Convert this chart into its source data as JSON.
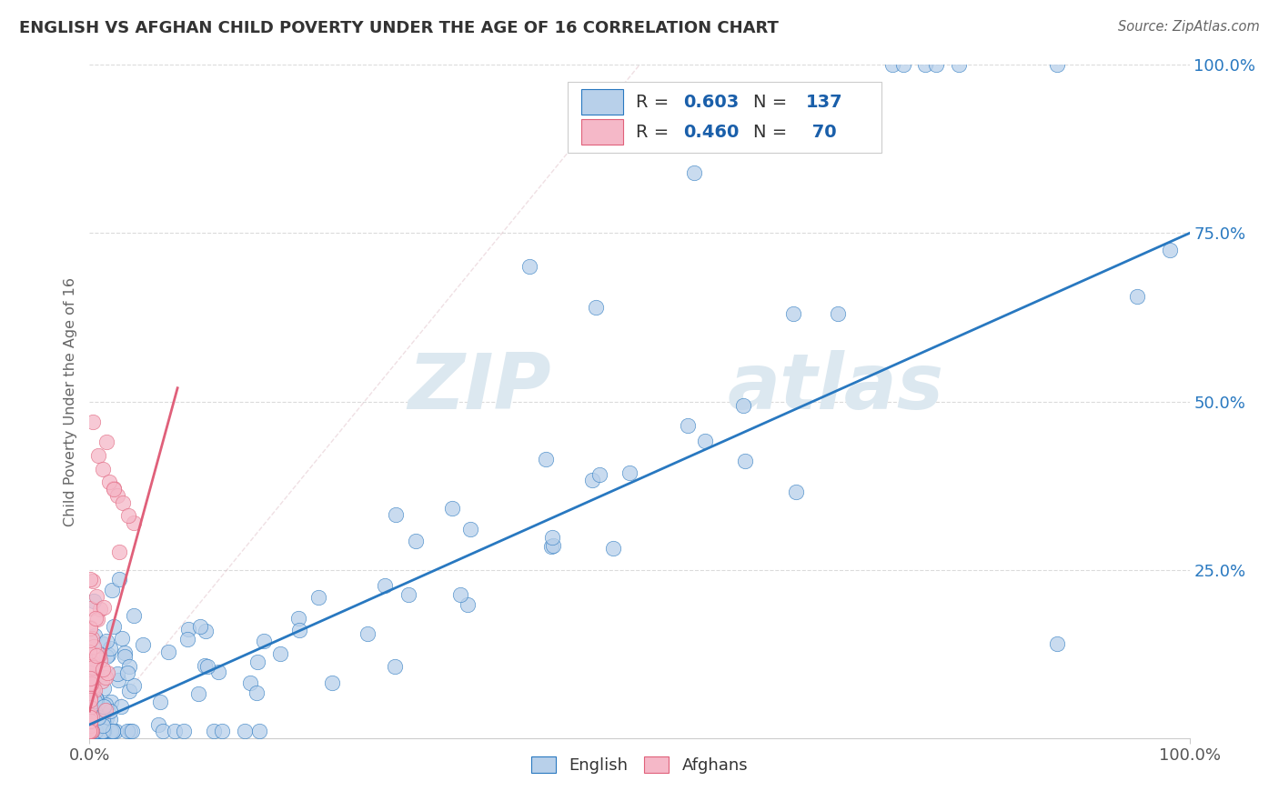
{
  "title": "ENGLISH VS AFGHAN CHILD POVERTY UNDER THE AGE OF 16 CORRELATION CHART",
  "source": "Source: ZipAtlas.com",
  "ylabel": "Child Poverty Under the Age of 16",
  "legend_english": "English",
  "legend_afghans": "Afghans",
  "english_color": "#b8d0ea",
  "english_line_color": "#2878c0",
  "afghan_color": "#f5b8c8",
  "afghan_line_color": "#e0607a",
  "dashed_ref_color": "#d0d0d0",
  "dashed_afghan_color": "#e8909a",
  "background_color": "#ffffff",
  "watermark_color": "#dce8f0",
  "title_color": "#333333",
  "label_color": "#666666",
  "tick_color": "#555555",
  "legend_text_color": "#1a5faa",
  "legend_N_color": "#e05878",
  "ytick_color": "#2878c0",
  "grid_color": "#d8d8d8",
  "xlim": [
    0.0,
    1.0
  ],
  "ylim": [
    0.0,
    1.0
  ],
  "yticks": [
    0.25,
    0.5,
    0.75,
    1.0
  ],
  "ytick_labels": [
    "25.0%",
    "50.0%",
    "75.0%",
    "100.0%"
  ],
  "xtick_labels": [
    "0.0%",
    "100.0%"
  ],
  "english_line_x": [
    0.0,
    1.0
  ],
  "english_line_y": [
    0.02,
    0.75
  ],
  "afghan_line_x": [
    0.0,
    0.08
  ],
  "afghan_line_y": [
    0.04,
    0.52
  ]
}
